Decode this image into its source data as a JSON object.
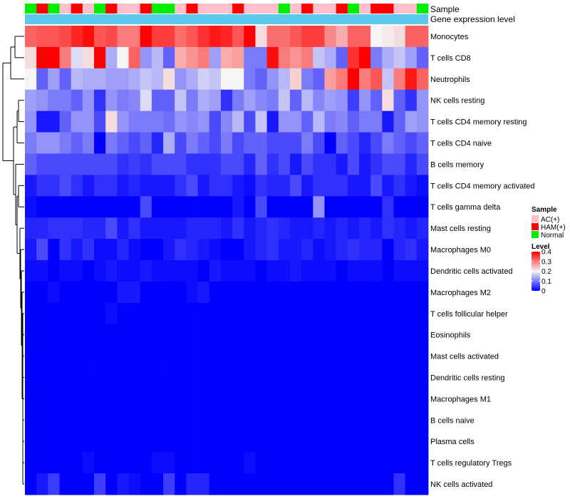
{
  "chart_data": {
    "type": "heatmap",
    "annotation_titles": {
      "sample": "Sample",
      "expression": "Gene expression level"
    },
    "rows": [
      "Monocytes",
      "T cells CD8",
      "Neutrophils",
      "NK cells resting",
      "T cells CD4 memory resting",
      "T cells CD4 naive",
      "B cells memory",
      "T cells CD4 memory activated",
      "T cells gamma delta",
      "Mast cells resting",
      "Macrophages M0",
      "Dendritic cells activated",
      "Macrophages M2",
      "T cells follicular helper",
      "Eosinophils",
      "Mast cells activated",
      "Dendritic cells resting",
      "Macrophages M1",
      "B cells naive",
      "Plasma cells",
      "T cells regulatory  Tregs",
      "NK cells activated"
    ],
    "sample_groups": [
      "Normal",
      "HAM(+)",
      "Normal",
      "AC(+)",
      "HAM(+)",
      "AC(+)",
      "Normal",
      "HAM(+)",
      "AC(+)",
      "AC(+)",
      "HAM(+)",
      "Normal",
      "Normal",
      "AC(+)",
      "HAM(+)",
      "AC(+)",
      "AC(+)",
      "AC(+)",
      "HAM(+)",
      "AC(+)",
      "AC(+)",
      "AC(+)",
      "Normal",
      "AC(+)",
      "HAM(+)",
      "AC(+)",
      "AC(+)",
      "HAM(+)",
      "Normal",
      "AC(+)",
      "HAM(+)",
      "HAM(+)",
      "AC(+)",
      "AC(+)",
      "Normal"
    ],
    "values": [
      [
        0.32,
        0.33,
        0.33,
        0.34,
        0.37,
        0.39,
        0.33,
        0.34,
        0.3,
        0.3,
        0.4,
        0.35,
        0.35,
        0.31,
        0.33,
        0.36,
        0.38,
        0.37,
        0.33,
        0.4,
        0.22,
        0.31,
        0.31,
        0.33,
        0.35,
        0.35,
        0.29,
        0.26,
        0.32,
        0.32,
        0.2,
        0.21,
        0.22,
        0.32,
        0.32
      ],
      [
        0.22,
        0.4,
        0.4,
        0.3,
        0.18,
        0.22,
        0.4,
        0.14,
        0.2,
        0.32,
        0.12,
        0.15,
        0.08,
        0.26,
        0.28,
        0.3,
        0.13,
        0.26,
        0.27,
        0.1,
        0.1,
        0.39,
        0.3,
        0.28,
        0.3,
        0.16,
        0.14,
        0.08,
        0.36,
        0.4,
        0.1,
        0.14,
        0.16,
        0.13,
        0.08
      ],
      [
        0.2,
        0.08,
        0.13,
        0.08,
        0.15,
        0.14,
        0.14,
        0.13,
        0.13,
        0.14,
        0.16,
        0.15,
        0.22,
        0.12,
        0.14,
        0.17,
        0.16,
        0.2,
        0.2,
        0.1,
        0.08,
        0.12,
        0.15,
        0.23,
        0.1,
        0.08,
        0.27,
        0.3,
        0.4,
        0.3,
        0.33,
        0.16,
        0.3,
        0.38,
        0.32
      ],
      [
        0.13,
        0.12,
        0.1,
        0.1,
        0.08,
        0.12,
        0.04,
        0.12,
        0.1,
        0.11,
        0.18,
        0.08,
        0.08,
        0.16,
        0.1,
        0.14,
        0.13,
        0.04,
        0.1,
        0.13,
        0.11,
        0.1,
        0.16,
        0.08,
        0.15,
        0.11,
        0.13,
        0.12,
        0.05,
        0.12,
        0.08,
        0.22,
        0.08,
        0.04,
        0.12
      ],
      [
        0.12,
        0.02,
        0.02,
        0.08,
        0.12,
        0.12,
        0.06,
        0.22,
        0.12,
        0.1,
        0.1,
        0.1,
        0.09,
        0.12,
        0.11,
        0.12,
        0.06,
        0.11,
        0.15,
        0.06,
        0.16,
        0.02,
        0.12,
        0.12,
        0.08,
        0.15,
        0.1,
        0.11,
        0.08,
        0.1,
        0.1,
        0.02,
        0.08,
        0.13,
        0.12
      ],
      [
        0.1,
        0.12,
        0.12,
        0.1,
        0.08,
        0.1,
        0.0,
        0.1,
        0.08,
        0.06,
        0.08,
        0.03,
        0.14,
        0.06,
        0.1,
        0.08,
        0.06,
        0.1,
        0.06,
        0.08,
        0.08,
        0.06,
        0.06,
        0.06,
        0.1,
        0.06,
        0.0,
        0.08,
        0.06,
        0.03,
        0.06,
        0.1,
        0.08,
        0.06,
        0.08
      ],
      [
        0.08,
        0.06,
        0.06,
        0.06,
        0.06,
        0.06,
        0.06,
        0.06,
        0.04,
        0.05,
        0.04,
        0.06,
        0.06,
        0.06,
        0.04,
        0.04,
        0.04,
        0.06,
        0.06,
        0.03,
        0.08,
        0.04,
        0.06,
        0.02,
        0.06,
        0.04,
        0.04,
        0.02,
        0.06,
        0.02,
        0.04,
        0.06,
        0.06,
        0.03,
        0.06
      ],
      [
        0.02,
        0.04,
        0.04,
        0.06,
        0.04,
        0.02,
        0.04,
        0.04,
        0.02,
        0.03,
        0.02,
        0.02,
        0.02,
        0.04,
        0.06,
        0.02,
        0.04,
        0.04,
        0.02,
        0.01,
        0.04,
        0.03,
        0.03,
        0.06,
        0.02,
        0.04,
        0.04,
        0.04,
        0.02,
        0.02,
        0.06,
        0.02,
        0.04,
        0.02,
        0.01
      ],
      [
        0.01,
        0.0,
        0.0,
        0.0,
        0.0,
        0.0,
        0.0,
        0.0,
        0.0,
        0.0,
        0.06,
        0.0,
        0.0,
        0.0,
        0.0,
        0.0,
        0.0,
        0.0,
        0.02,
        0.0,
        0.06,
        0.0,
        0.0,
        0.0,
        0.0,
        0.12,
        0.0,
        0.0,
        0.0,
        0.0,
        0.0,
        0.04,
        0.0,
        0.0,
        0.0
      ],
      [
        0.03,
        0.03,
        0.04,
        0.04,
        0.04,
        0.03,
        0.03,
        0.06,
        0.02,
        0.04,
        0.02,
        0.02,
        0.02,
        0.02,
        0.03,
        0.03,
        0.03,
        0.02,
        0.04,
        0.02,
        0.03,
        0.04,
        0.03,
        0.02,
        0.02,
        0.03,
        0.02,
        0.03,
        0.02,
        0.03,
        0.02,
        0.04,
        0.03,
        0.02,
        0.03
      ],
      [
        0.02,
        0.06,
        0.0,
        0.04,
        0.02,
        0.04,
        0.01,
        0.01,
        0.03,
        0.01,
        0.0,
        0.0,
        0.02,
        0.04,
        0.03,
        0.02,
        0.01,
        0.0,
        0.0,
        0.02,
        0.03,
        0.04,
        0.02,
        0.02,
        0.03,
        0.01,
        0.02,
        0.03,
        0.04,
        0.03,
        0.03,
        0.0,
        0.03,
        0.04,
        0.02
      ],
      [
        0.01,
        0.01,
        0.0,
        0.01,
        0.01,
        0.0,
        0.01,
        0.02,
        0.01,
        0.01,
        0.02,
        0.01,
        0.01,
        0.01,
        0.01,
        0.0,
        0.02,
        0.01,
        0.01,
        0.01,
        0.0,
        0.01,
        0.01,
        0.02,
        0.01,
        0.01,
        0.01,
        0.0,
        0.01,
        0.01,
        0.01,
        0.0,
        0.01,
        0.01,
        0.01
      ],
      [
        0.0,
        0.0,
        0.01,
        0.0,
        0.0,
        0.0,
        0.0,
        0.0,
        0.02,
        0.02,
        0.0,
        0.0,
        0.0,
        0.0,
        0.01,
        0.02,
        0.0,
        0.0,
        0.0,
        0.0,
        0.0,
        0.0,
        0.0,
        0.0,
        0.0,
        0.0,
        0.0,
        0.0,
        0.0,
        0.0,
        0.0,
        0.0,
        0.0,
        0.0,
        0.0
      ],
      [
        0.0,
        0.0,
        0.0,
        0.0,
        0.0,
        0.0,
        0.0,
        0.01,
        0.0,
        0.0,
        0.0,
        0.0,
        0.0,
        0.0,
        0.0,
        0.0,
        0.0,
        0.0,
        0.0,
        0.0,
        0.0,
        0.0,
        0.0,
        0.0,
        0.0,
        0.0,
        0.0,
        0.0,
        0.0,
        0.0,
        0.0,
        0.0,
        0.0,
        0.0,
        0.0
      ],
      [
        0,
        0,
        0,
        0,
        0,
        0,
        0,
        0,
        0,
        0,
        0,
        0,
        0,
        0,
        0,
        0,
        0,
        0,
        0,
        0,
        0,
        0,
        0,
        0,
        0,
        0,
        0,
        0,
        0,
        0,
        0,
        0,
        0,
        0,
        0
      ],
      [
        0,
        0,
        0,
        0,
        0,
        0,
        0,
        0,
        0,
        0,
        0,
        0,
        0,
        0,
        0,
        0,
        0,
        0,
        0,
        0,
        0,
        0,
        0,
        0,
        0,
        0,
        0,
        0,
        0,
        0,
        0,
        0,
        0,
        0,
        0
      ],
      [
        0,
        0,
        0,
        0,
        0,
        0,
        0,
        0,
        0,
        0,
        0,
        0,
        0,
        0,
        0,
        0,
        0,
        0,
        0,
        0,
        0,
        0,
        0,
        0,
        0,
        0,
        0,
        0,
        0,
        0,
        0,
        0,
        0,
        0,
        0
      ],
      [
        0,
        0,
        0,
        0,
        0,
        0,
        0,
        0,
        0,
        0,
        0,
        0,
        0,
        0,
        0,
        0,
        0,
        0,
        0,
        0,
        0,
        0,
        0,
        0,
        0,
        0,
        0,
        0,
        0,
        0,
        0,
        0,
        0,
        0,
        0
      ],
      [
        0,
        0,
        0,
        0,
        0,
        0,
        0,
        0,
        0,
        0,
        0,
        0,
        0,
        0,
        0,
        0,
        0,
        0,
        0,
        0,
        0,
        0,
        0,
        0,
        0,
        0,
        0,
        0,
        0,
        0,
        0,
        0,
        0,
        0,
        0
      ],
      [
        0,
        0,
        0,
        0,
        0,
        0,
        0,
        0,
        0,
        0,
        0,
        0,
        0,
        0,
        0,
        0,
        0,
        0,
        0,
        0,
        0,
        0,
        0,
        0,
        0,
        0,
        0,
        0,
        0,
        0,
        0,
        0,
        0,
        0,
        0
      ],
      [
        0.0,
        0.0,
        0.0,
        0.0,
        0.0,
        0.01,
        0.0,
        0.0,
        0.0,
        0.0,
        0.0,
        0.01,
        0.01,
        0.0,
        0.0,
        0.0,
        0.0,
        0.0,
        0.0,
        0.01,
        0.0,
        0.0,
        0.0,
        0.0,
        0.0,
        0.0,
        0.0,
        0.0,
        0.0,
        0.0,
        0.0,
        0.0,
        0.0,
        0.0,
        0.0
      ],
      [
        0.0,
        0.02,
        0.05,
        0.0,
        0.0,
        0.0,
        0.05,
        0.0,
        0.02,
        0.01,
        0.0,
        0.0,
        0.05,
        0.0,
        0.03,
        0.03,
        0.0,
        0.0,
        0.0,
        0.0,
        0.0,
        0.0,
        0.0,
        0.0,
        0.0,
        0.0,
        0.0,
        0.0,
        0.0,
        0.0,
        0.0,
        0.0,
        0.04,
        0.0,
        0.0
      ]
    ],
    "color_scale": {
      "min": 0,
      "mid": 0.2,
      "max": 0.4,
      "low_color": "#0000FF",
      "mid_color": "#F5F5F5",
      "high_color": "#FF0000"
    },
    "legend": {
      "sample_title": "Sample",
      "sample_entries": [
        {
          "label": "AC(+)",
          "color": "#FFC0CB"
        },
        {
          "label": "HAM(+)",
          "color": "#FF0000"
        },
        {
          "label": "Normal",
          "color": "#00EE00"
        }
      ],
      "level_title": "Level",
      "level_ticks": [
        "0.4",
        "0.3",
        "0.2",
        "0.1",
        "0"
      ],
      "level_tick_values": [
        0.4,
        0.3,
        0.2,
        0.1,
        0
      ]
    },
    "expression_bar_color": "#5BC8EE",
    "row_dendrogram": true
  }
}
